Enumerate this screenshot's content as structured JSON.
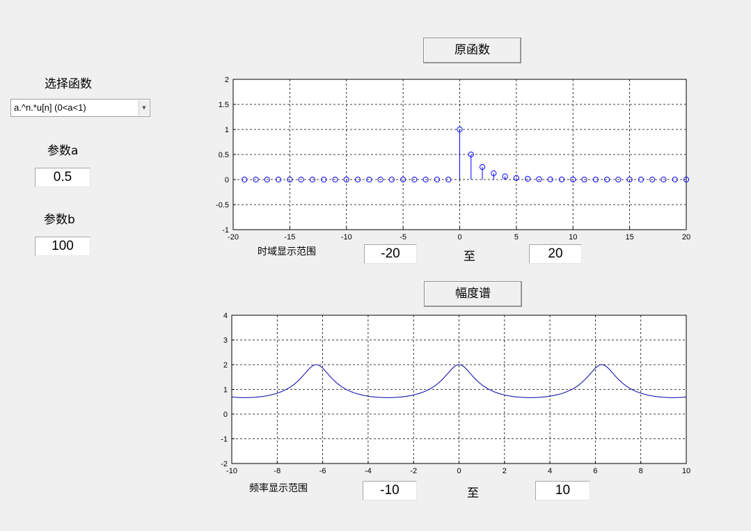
{
  "left_panel": {
    "select_label": "选择函数",
    "select_value": "a.^n.*u[n] (0<a<1)",
    "param_a_label": "参数a",
    "param_a_value": "0.5",
    "param_b_label": "参数b",
    "param_b_value": "100"
  },
  "time_panel": {
    "button_label": "原函数",
    "range_label": "时域显示范围",
    "range_from": "-20",
    "range_to_label": "至",
    "range_to": "20"
  },
  "freq_panel": {
    "button_label": "幅度谱",
    "range_label": "频率显示范围",
    "range_from": "-10",
    "range_to_label": "至",
    "range_to": "10"
  },
  "chart_data": [
    {
      "type": "stem",
      "xlim": [
        -20,
        20
      ],
      "ylim": [
        -1,
        2
      ],
      "xticks": [
        -20,
        -15,
        -10,
        -5,
        0,
        5,
        10,
        15,
        20
      ],
      "yticks": [
        -1,
        -0.5,
        0,
        0.5,
        1,
        1.5,
        2
      ],
      "grid": true,
      "line_color": "#0000ff",
      "n": [
        -19,
        -18,
        -17,
        -16,
        -15,
        -14,
        -13,
        -12,
        -11,
        -10,
        -9,
        -8,
        -7,
        -6,
        -5,
        -4,
        -3,
        -2,
        -1,
        0,
        1,
        2,
        3,
        4,
        5,
        6,
        7,
        8,
        9,
        10,
        11,
        12,
        13,
        14,
        15,
        16,
        17,
        18,
        19,
        20
      ],
      "a": 0.5
    },
    {
      "type": "line",
      "xlim": [
        -10,
        10
      ],
      "ylim": [
        -2,
        4
      ],
      "xticks": [
        -10,
        -8,
        -6,
        -4,
        -2,
        0,
        2,
        4,
        6,
        8,
        10
      ],
      "yticks": [
        -2,
        -1,
        0,
        1,
        2,
        3,
        4
      ],
      "grid": true,
      "line_color": "#0000aa",
      "function": "|1/(1 - a·e^(-jω))|",
      "a": 0.5
    }
  ]
}
